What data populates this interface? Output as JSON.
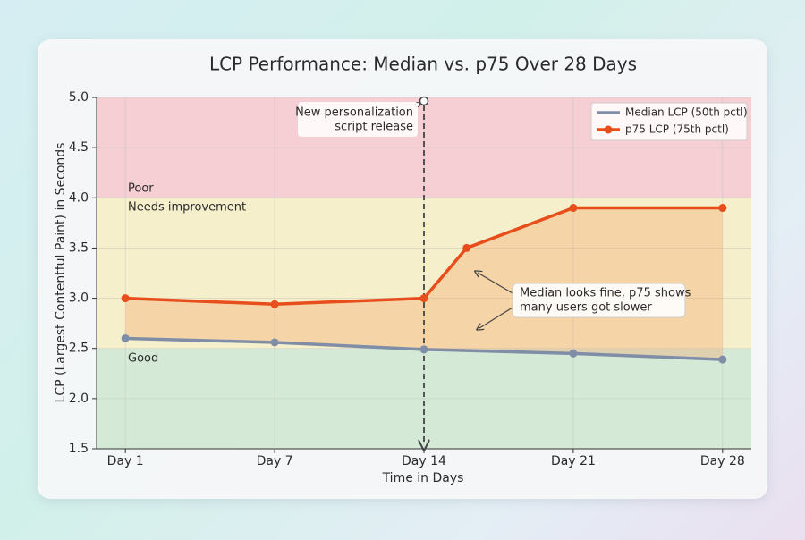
{
  "chart_data": {
    "type": "line",
    "title": "LCP Performance: Median vs. p75 Over 28 Days",
    "x_label": "Time in Days",
    "y_label": "LCP (Largest Contentful Paint) in Seconds",
    "xlim": [
      -1.35,
      29.35
    ],
    "xticks": [
      {
        "value": 0,
        "label": "Day 1"
      },
      {
        "value": 7,
        "label": "Day 7"
      },
      {
        "value": 14,
        "label": "Day 14"
      },
      {
        "value": 21,
        "label": "Day 21"
      },
      {
        "value": 28,
        "label": "Day 28"
      }
    ],
    "ylim": [
      1.5,
      5.0
    ],
    "yticks": [
      1.5,
      {
        "value": 2,
        "label": "2.0"
      },
      2.5,
      {
        "value": 3,
        "label": "3.0"
      },
      3.5,
      {
        "value": 4,
        "label": "4.0"
      },
      4.5,
      {
        "value": 5,
        "label": "5.0"
      }
    ],
    "grid": true,
    "legend": "upper right",
    "zones": [
      {
        "label": "Poor",
        "from": 4.0,
        "to": 5.0,
        "color": "#f5cfd3"
      },
      {
        "label": "Needs improvement",
        "from": 2.5,
        "to": 4.0,
        "color": "#f6efcb"
      },
      {
        "label": "Good",
        "from": 1.5,
        "to": 2.5,
        "color": "#d5ead6"
      }
    ],
    "series": [
      {
        "name": "Median LCP (50th pctl)",
        "color": "#7f8ea6",
        "x": [
          0,
          7,
          14,
          21,
          28
        ],
        "values": [
          2.6,
          2.56,
          2.49,
          2.45,
          2.39
        ]
      },
      {
        "name": "p75 LCP (75th pctl)",
        "color": "#e84e1b",
        "x": [
          0,
          7,
          14,
          16,
          21,
          28
        ],
        "values": [
          3.0,
          2.94,
          3.0,
          3.5,
          3.9,
          3.9
        ]
      }
    ],
    "annotations": [
      {
        "x": 14,
        "lines": [
          "New personalization",
          "script release"
        ]
      },
      {
        "lines": [
          "Median looks fine, p75 shows",
          "many users got slower"
        ]
      }
    ]
  }
}
